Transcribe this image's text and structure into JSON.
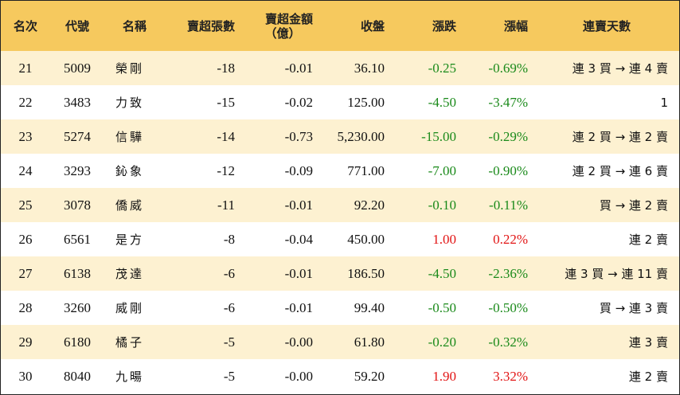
{
  "headers": {
    "rank": "名次",
    "code": "代號",
    "name": "名稱",
    "net_lots": "賣超張數",
    "net_amount_line1": "賣超金額",
    "net_amount_line2": "（億）",
    "close": "收盤",
    "change": "漲跌",
    "change_pct": "漲幅",
    "streak": "連賣天數"
  },
  "rows": [
    {
      "rank": "21",
      "code": "5009",
      "name": "榮剛",
      "net_lots": "-18",
      "net_amount": "-0.01",
      "close": "36.10",
      "change": "-0.25",
      "change_pct": "-0.69%",
      "trend": "neg",
      "streak": "連 3 買 → 連 4 賣"
    },
    {
      "rank": "22",
      "code": "3483",
      "name": "力致",
      "net_lots": "-15",
      "net_amount": "-0.02",
      "close": "125.00",
      "change": "-4.50",
      "change_pct": "-3.47%",
      "trend": "neg",
      "streak": "1"
    },
    {
      "rank": "23",
      "code": "5274",
      "name": "信驊",
      "net_lots": "-14",
      "net_amount": "-0.73",
      "close": "5,230.00",
      "change": "-15.00",
      "change_pct": "-0.29%",
      "trend": "neg",
      "streak": "連 2 買 → 連 2 賣"
    },
    {
      "rank": "24",
      "code": "3293",
      "name": "鈊象",
      "net_lots": "-12",
      "net_amount": "-0.09",
      "close": "771.00",
      "change": "-7.00",
      "change_pct": "-0.90%",
      "trend": "neg",
      "streak": "連 2 買 → 連 6 賣"
    },
    {
      "rank": "25",
      "code": "3078",
      "name": "僑威",
      "net_lots": "-11",
      "net_amount": "-0.01",
      "close": "92.20",
      "change": "-0.10",
      "change_pct": "-0.11%",
      "trend": "neg",
      "streak": "買 → 連 2 賣"
    },
    {
      "rank": "26",
      "code": "6561",
      "name": "是方",
      "net_lots": "-8",
      "net_amount": "-0.04",
      "close": "450.00",
      "change": "1.00",
      "change_pct": "0.22%",
      "trend": "pos",
      "streak": "連 2 賣"
    },
    {
      "rank": "27",
      "code": "6138",
      "name": "茂達",
      "net_lots": "-6",
      "net_amount": "-0.01",
      "close": "186.50",
      "change": "-4.50",
      "change_pct": "-2.36%",
      "trend": "neg",
      "streak": "連 3 買 → 連 11 賣"
    },
    {
      "rank": "28",
      "code": "3260",
      "name": "威剛",
      "net_lots": "-6",
      "net_amount": "-0.01",
      "close": "99.40",
      "change": "-0.50",
      "change_pct": "-0.50%",
      "trend": "neg",
      "streak": "買 → 連 3 賣"
    },
    {
      "rank": "29",
      "code": "6180",
      "name": "橘子",
      "net_lots": "-5",
      "net_amount": "-0.00",
      "close": "61.80",
      "change": "-0.20",
      "change_pct": "-0.32%",
      "trend": "neg",
      "streak": "連 3 賣"
    },
    {
      "rank": "30",
      "code": "8040",
      "name": "九暘",
      "net_lots": "-5",
      "net_amount": "-0.00",
      "close": "59.20",
      "change": "1.90",
      "change_pct": "3.32%",
      "trend": "pos",
      "streak": "連 2 賣"
    }
  ],
  "colors": {
    "header_bg": "#f6c95e",
    "stripe_bg": "#fdf1d1",
    "down": "#1a8a1a",
    "up": "#e21414"
  }
}
